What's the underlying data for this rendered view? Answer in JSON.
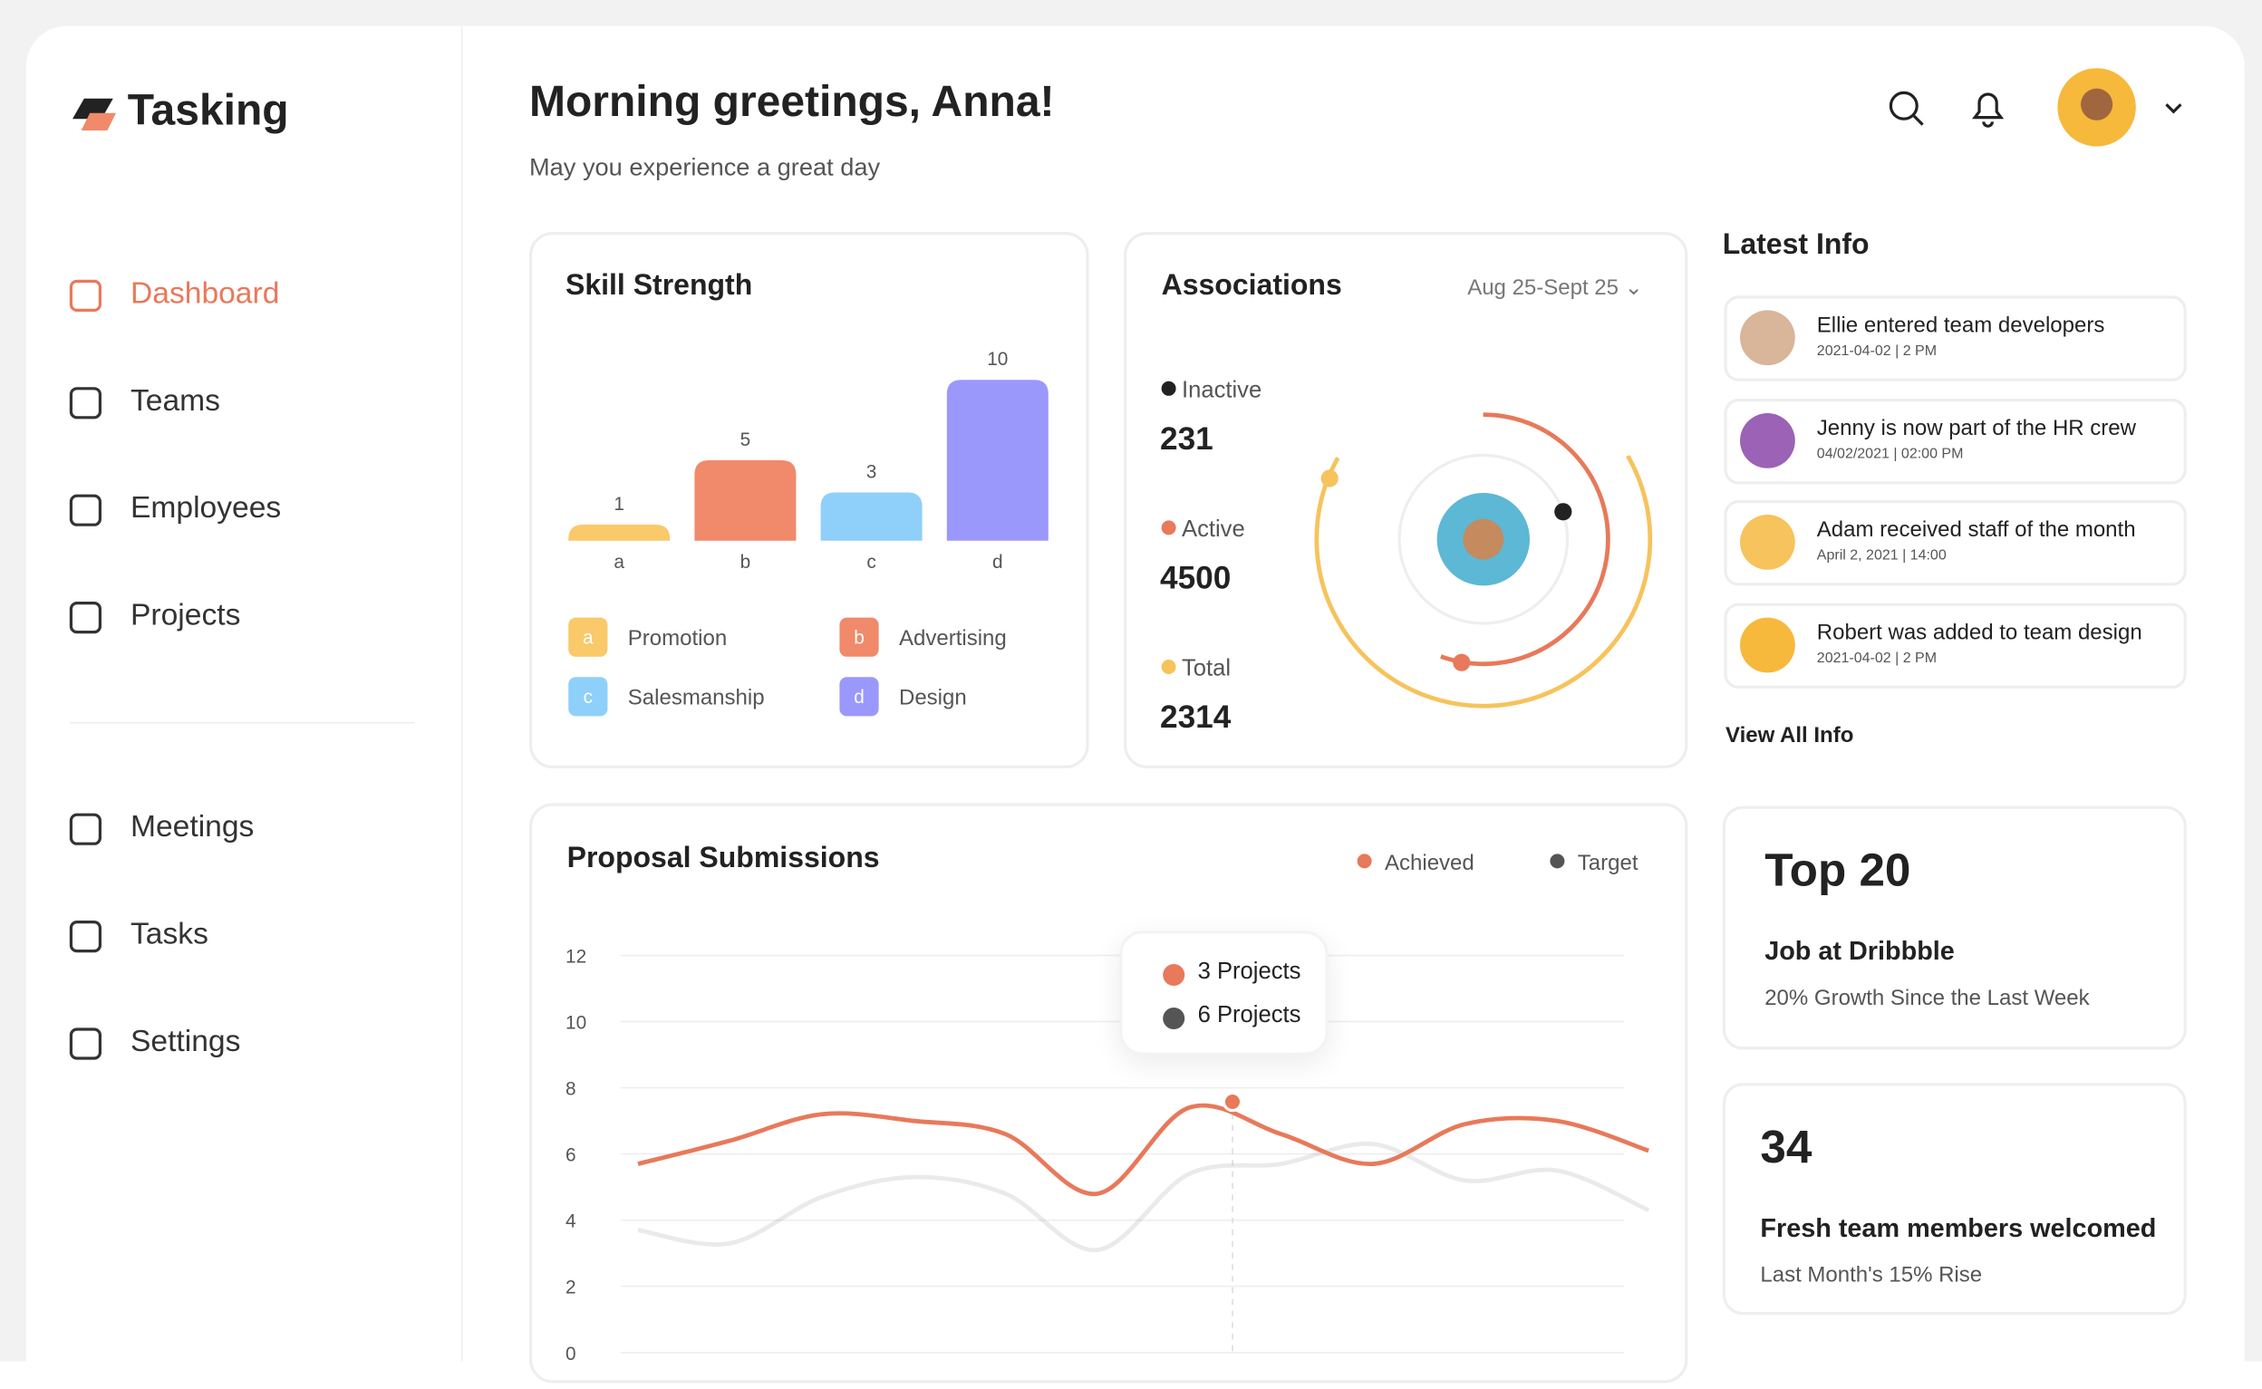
{
  "brand": "Tasking",
  "nav": [
    "Dashboard",
    "Teams",
    "Employees",
    "Projects"
  ],
  "nav2": [
    "Meetings",
    "Tasks",
    "Settings"
  ],
  "header": {
    "title": "Morning greetings, Anna!",
    "subtitle": "May you experience a great day"
  },
  "skill": {
    "type": "bar",
    "title": "Skill Strength",
    "categories": [
      "a",
      "b",
      "c",
      "d"
    ],
    "values": [
      1,
      5,
      3,
      10
    ],
    "colors": [
      "#f9c96a",
      "#f08a6a",
      "#8fd0fb",
      "#9a98fb"
    ],
    "legend": [
      "Promotion",
      "Advertising",
      "Salesmanship",
      "Design"
    ]
  },
  "associations": {
    "title": "Associations",
    "range": "Aug 25-Sept 25",
    "stats": [
      {
        "label": "Inactive",
        "value": 231,
        "color": "#222222"
      },
      {
        "label": "Active",
        "value": 4500,
        "color": "#e8795a"
      },
      {
        "label": "Total",
        "value": 2314,
        "color": "#f6c35c"
      }
    ]
  },
  "latest": {
    "title": "Latest Info",
    "items": [
      {
        "text": "Ellie entered team developers",
        "time": "2021-04-02 | 2 PM"
      },
      {
        "text": "Jenny is now part of the HR crew",
        "time": "04/02/2021 | 02:00 PM"
      },
      {
        "text": "Adam received staff of the month",
        "time": "April 2, 2021 | 14:00"
      },
      {
        "text": "Robert was added to team design",
        "time": "2021-04-02 | 2 PM"
      }
    ],
    "link": "View All Info"
  },
  "proposal": {
    "type": "line",
    "title": "Proposal Submissions",
    "ylim": [
      0,
      12
    ],
    "yticks": [
      0,
      2,
      4,
      6,
      8,
      10,
      12
    ],
    "series": [
      {
        "name": "Achieved",
        "color": "#e8795a",
        "values": [
          5.7,
          6.4,
          7.2,
          7.0,
          6.6,
          4.8,
          7.4,
          6.6,
          5.7,
          6.9,
          7.0,
          6.1
        ]
      },
      {
        "name": "Target",
        "color": "#555555",
        "values": [
          3.7,
          3.3,
          4.7,
          5.3,
          4.8,
          3.1,
          5.4,
          5.7,
          6.3,
          5.2,
          5.5,
          4.3
        ]
      }
    ],
    "tooltip": [
      "3 Projects",
      "6 Projects"
    ]
  },
  "cards": [
    {
      "headline": "Top 20",
      "title": "Job at Dribbble",
      "sub": "20% Growth Since the Last Week"
    },
    {
      "headline": "34",
      "title": "Fresh team members welcomed",
      "sub": "Last Month's 15% Rise"
    }
  ]
}
